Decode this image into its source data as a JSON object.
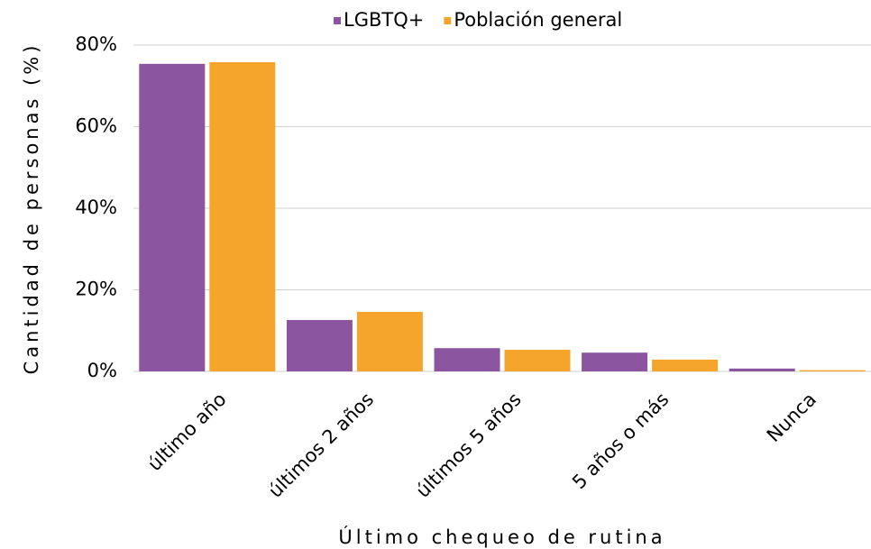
{
  "chart_data": {
    "type": "bar",
    "x_label": "Último chequeo de rutina",
    "y_label": "Cantidad de personas (%)",
    "categories": [
      "último año",
      "últimos 2 años",
      "últimos 5 años",
      "5 años o más",
      "Nunca"
    ],
    "series": [
      {
        "name": "LGBTQ+",
        "color": "#8b55a0",
        "values": [
          75.4,
          12.6,
          5.7,
          4.6,
          0.7
        ]
      },
      {
        "name": "Población general",
        "color": "#f5a52c",
        "values": [
          75.8,
          14.6,
          5.3,
          2.9,
          0.3
        ]
      }
    ],
    "ylim": [
      0,
      80
    ],
    "yticks": [
      {
        "value": 0,
        "label": "0%"
      },
      {
        "value": 20,
        "label": "20%"
      },
      {
        "value": 40,
        "label": "40%"
      },
      {
        "value": 60,
        "label": "60%"
      },
      {
        "value": 80,
        "label": "80%"
      }
    ],
    "grid": true,
    "legend": "top"
  }
}
